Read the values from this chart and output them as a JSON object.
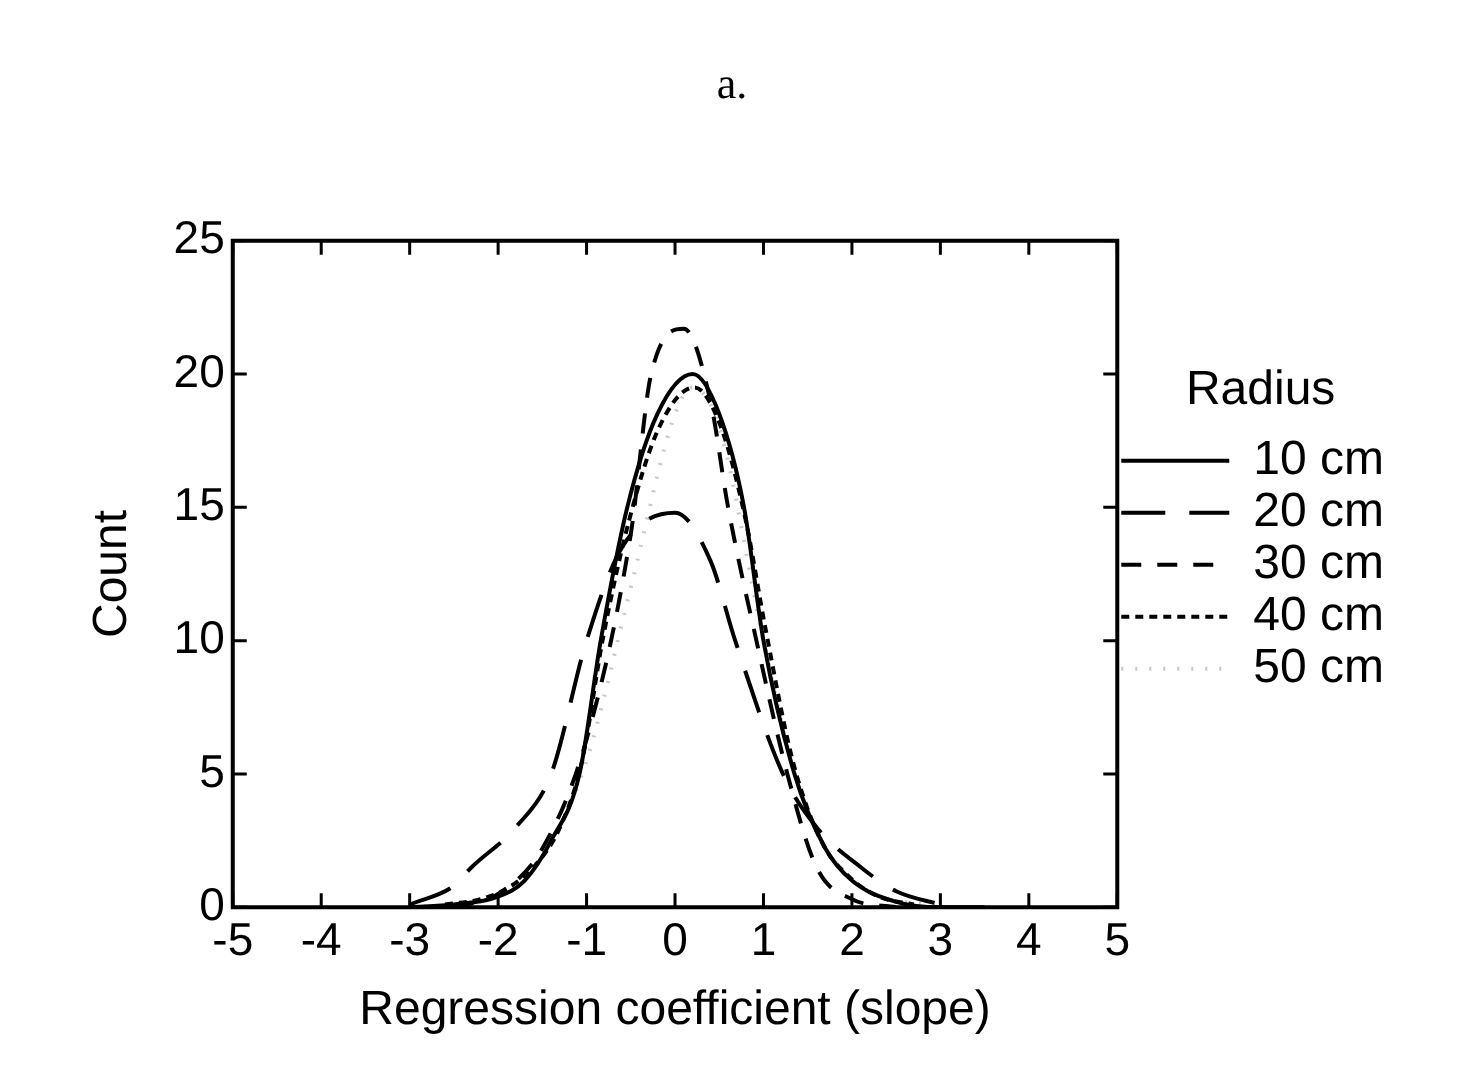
{
  "chart_data": {
    "type": "line",
    "title": "a.",
    "xlabel": "Regression coefficient (slope)",
    "ylabel": "Count",
    "legend_title": "Radius",
    "legend": "right",
    "grid": false,
    "marker": "none",
    "xlim": [
      -5,
      5
    ],
    "xticks": [
      -5,
      -4,
      -3,
      -2,
      -1,
      0,
      1,
      2,
      3,
      4,
      5
    ],
    "ylim": [
      0,
      25
    ],
    "yticks": [
      0,
      5,
      10,
      15,
      20,
      25
    ],
    "series": [
      {
        "name": "10 cm",
        "color": "#000000",
        "line_style": "solid",
        "x": [
          -3,
          -2.5,
          -2,
          -1.7,
          -1.4,
          -1.08,
          -0.84,
          -0.54,
          -0.2,
          0.2,
          0.5,
          0.78,
          1,
          1.35,
          1.7,
          2,
          2.5,
          3,
          3.5
        ],
        "values": [
          0,
          0.1,
          0.4,
          1,
          2.5,
          5,
          10,
          15,
          18.5,
          20,
          18.5,
          15,
          10,
          5,
          2.2,
          1,
          0.2,
          0,
          0
        ]
      },
      {
        "name": "20 cm",
        "color": "#000000",
        "line_style": "longdash",
        "x": [
          -3,
          -2.5,
          -2.3,
          -1.8,
          -1.4,
          -1,
          -0.6,
          0,
          0.4,
          0.68,
          1.22,
          1.6,
          2.1,
          2.5,
          3
        ],
        "values": [
          0.1,
          0.8,
          1.5,
          3,
          5,
          10,
          13.5,
          14.8,
          13,
          10,
          5,
          3,
          1.5,
          0.6,
          0.1
        ]
      },
      {
        "name": "30 cm",
        "color": "#000000",
        "line_style": "dashed",
        "x": [
          -2.5,
          -2,
          -1.5,
          -1,
          -0.5,
          -0.27,
          0.1,
          0.4,
          0.6,
          0.92,
          1.27,
          1.6,
          2,
          2.5
        ],
        "values": [
          0,
          0.5,
          2.2,
          6.3,
          14,
          20,
          21.7,
          19,
          15,
          10,
          5,
          1.5,
          0.3,
          0
        ]
      },
      {
        "name": "40 cm",
        "color": "#000000",
        "line_style": "dotted",
        "x": [
          -2.6,
          -2.2,
          -1.9,
          -1.6,
          -1.3,
          -1.05,
          -0.82,
          -0.52,
          -0.18,
          0.22,
          0.52,
          0.8,
          1.02,
          1.33,
          1.65,
          1.95,
          2.3,
          2.7
        ],
        "values": [
          0.1,
          0.3,
          0.7,
          1.5,
          3,
          5.5,
          10,
          14.5,
          18,
          19.5,
          18,
          14.5,
          10.5,
          5.5,
          2.5,
          1.2,
          0.4,
          0.1
        ]
      },
      {
        "name": "50 cm",
        "color": "#c8c8c8",
        "line_style": "sparse",
        "x": [
          -3,
          -2,
          -1.4,
          -1,
          -0.5,
          0,
          0.2,
          0.5,
          1,
          1.4,
          2,
          3
        ],
        "values": [
          0,
          0.4,
          2.5,
          5.5,
          12,
          18.5,
          19.5,
          18,
          10,
          4.5,
          1,
          0
        ]
      }
    ]
  }
}
